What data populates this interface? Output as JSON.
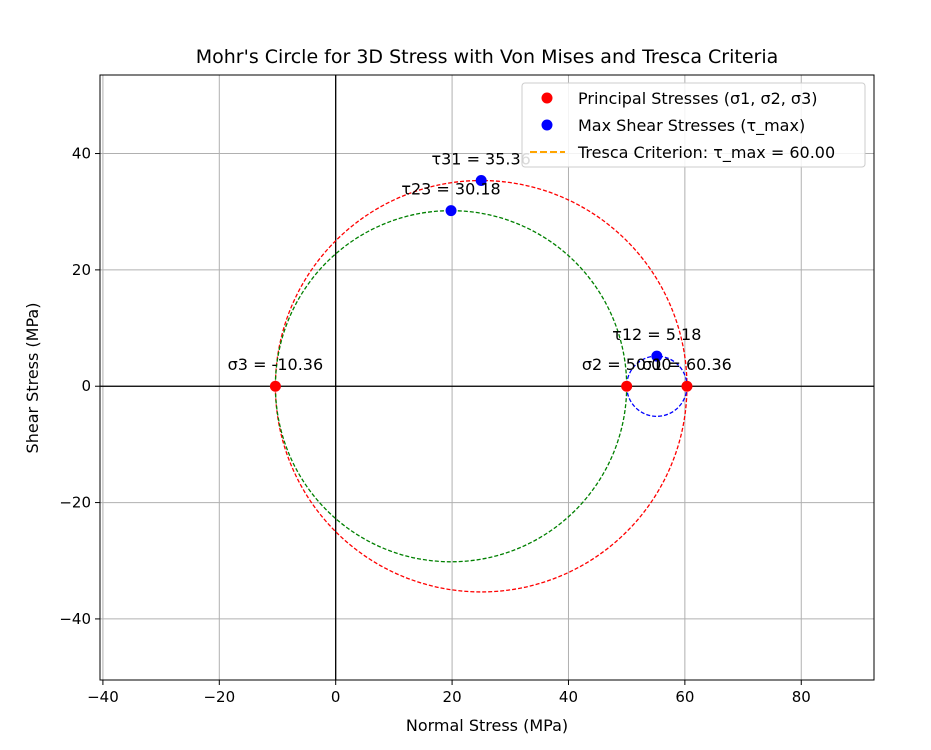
{
  "chart_data": {
    "type": "scatter",
    "title": "Mohr's Circle for 3D Stress with Von Mises and Tresca Criteria",
    "xlabel": "Normal Stress (MPa)",
    "ylabel": "Shear Stress (MPa)",
    "xlim": [
      -40.5,
      92.5
    ],
    "ylim": [
      -50.5,
      53.5
    ],
    "xticks": [
      -40,
      -20,
      0,
      20,
      40,
      60,
      80
    ],
    "yticks": [
      -40,
      -20,
      0,
      20,
      40
    ],
    "xtick_labels": [
      "−40",
      "−20",
      "0",
      "20",
      "40",
      "60",
      "80"
    ],
    "ytick_labels": [
      "−40",
      "−20",
      "0",
      "20",
      "40"
    ],
    "grid": true,
    "legend_position": "top-right",
    "circles": [
      {
        "name": "circle-sigma1-sigma3",
        "center": 25.0,
        "radius": 35.36,
        "color": "#ff0000"
      },
      {
        "name": "circle-sigma2-sigma3",
        "center": 19.82,
        "radius": 30.18,
        "color": "#008000"
      },
      {
        "name": "circle-sigma1-sigma2",
        "center": 55.18,
        "radius": 5.18,
        "color": "#0000ff"
      }
    ],
    "series": [
      {
        "name": "Principal Stresses (σ1, σ2, σ3)",
        "color": "#ff0000",
        "marker": "circle",
        "points": [
          [
            60.36,
            0
          ],
          [
            50.0,
            0
          ],
          [
            -10.36,
            0
          ]
        ],
        "labels": [
          "σ1 = 60.36",
          "σ2 = 50.00",
          "σ3 = -10.36"
        ]
      },
      {
        "name": "Max Shear Stresses (τ_max)",
        "color": "#0000ff",
        "marker": "circle",
        "points": [
          [
            55.18,
            5.18
          ],
          [
            19.82,
            30.18
          ],
          [
            25.0,
            35.36
          ]
        ],
        "labels": [
          "τ12 = 5.18",
          "τ23 = 30.18",
          "τ31 = 35.36"
        ]
      }
    ],
    "legend": [
      {
        "label": "Principal Stresses (σ1, σ2, σ3)",
        "style": "marker",
        "color": "#ff0000"
      },
      {
        "label": "Max Shear Stresses (τ_max)",
        "style": "marker",
        "color": "#0000ff"
      },
      {
        "label": "Tresca Criterion: τ_max = 60.00",
        "style": "dashed-line",
        "color": "#ffa500"
      }
    ]
  }
}
